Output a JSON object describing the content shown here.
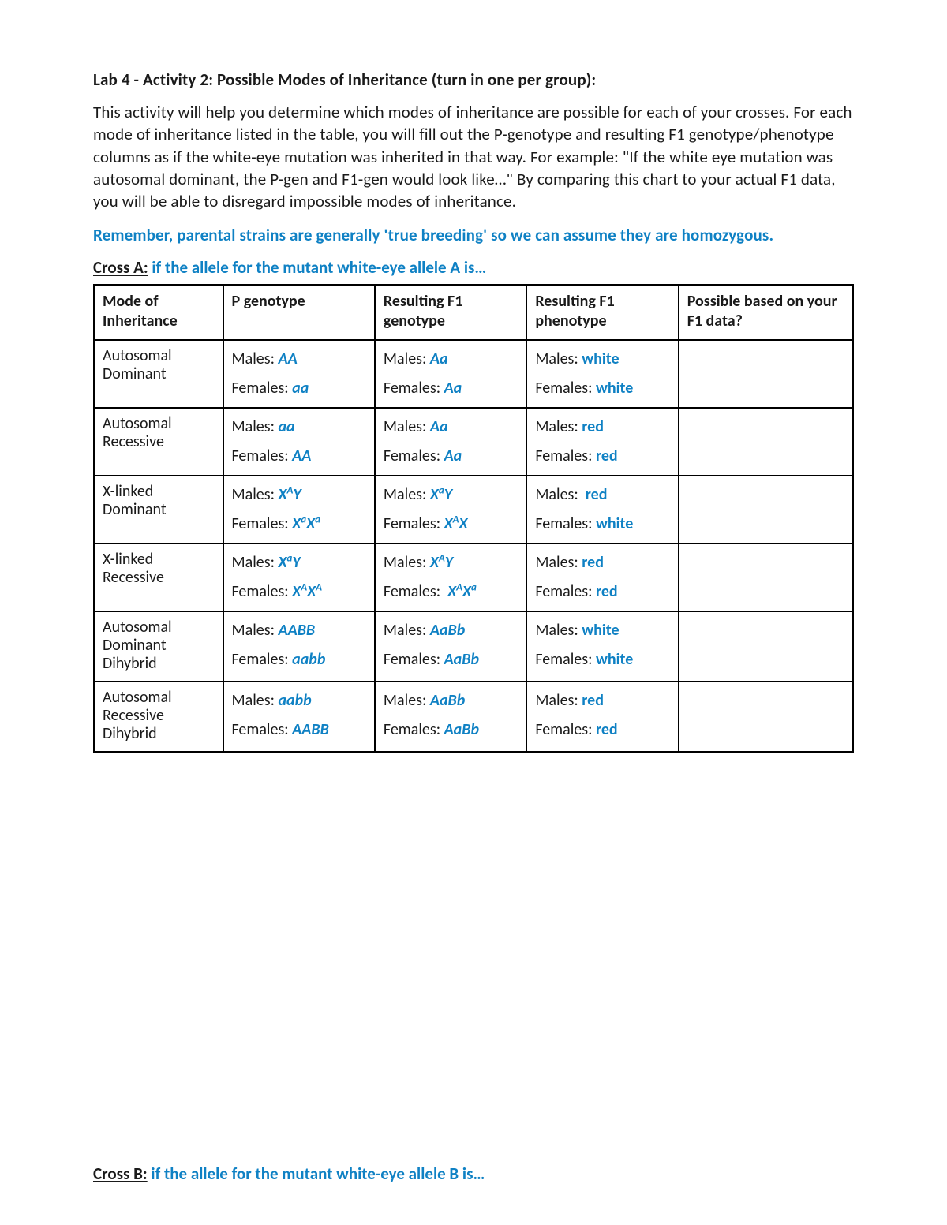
{
  "colors": {
    "text": "#1a1a1a",
    "accent": "#0f81c4",
    "border": "#000000",
    "background": "#ffffff"
  },
  "typography": {
    "family": "Calibri",
    "body_size_pt": 11,
    "title_size_pt": 11,
    "line_height": 1.35
  },
  "heading": "Lab 4 - Activity 2: Possible Modes of Inheritance (turn in one per group):",
  "intro": "This activity will help you determine which modes of inheritance are possible for each of your crosses. For each mode of inheritance listed in the table, you will fill out the P-genotype and resulting F1 genotype/phenotype columns as if the white-eye mutation was inherited in that way. For example: \"If the white eye mutation was autosomal dominant, the P-gen and F1-gen would look like…\" By comparing this chart to your actual F1 data, you will be able to disregard impossible modes of inheritance.",
  "reminder": "Remember, parental strains are generally 'true breeding' so we can assume they are homozygous.",
  "crossA": {
    "label": "Cross A:",
    "text": " if the allele for the mutant white-eye allele A is…"
  },
  "crossB": {
    "label": "Cross B:",
    "text": "  if the allele for the mutant white-eye allele B is…"
  },
  "table": {
    "columns": [
      "Mode of Inheritance",
      "P genotype",
      "Resulting F1 genotype",
      "Resulting F1 phenotype",
      "Possible based on your F1 data?"
    ],
    "column_widths_pct": [
      17,
      20,
      20,
      20,
      23
    ],
    "rows": [
      {
        "mode": "Autosomal Dominant",
        "p": {
          "m": "AA",
          "f": "aa"
        },
        "f1g": {
          "m": "Aa",
          "f": "Aa"
        },
        "f1p": {
          "m": "white",
          "f": "white"
        },
        "possible": ""
      },
      {
        "mode": "Autosomal Recessive",
        "p": {
          "m": "aa",
          "f": "AA"
        },
        "f1g": {
          "m": "Aa",
          "f": "Aa"
        },
        "f1p": {
          "m": "red",
          "f": "red"
        },
        "possible": ""
      },
      {
        "mode": "X-linked Dominant",
        "p": {
          "m": "X^A Y",
          "f": "X^a X^a"
        },
        "f1g": {
          "m": "X^a Y",
          "f": "X^A X"
        },
        "f1p": {
          "m": "red",
          "f": "white"
        },
        "f1p_spaced_male": true,
        "possible": ""
      },
      {
        "mode": "X-linked Recessive",
        "p": {
          "m": "X^a Y",
          "f": "X^A X^A"
        },
        "f1g": {
          "m": "X^A Y",
          "f": "X^A X^a"
        },
        "f1g_f_spaced": true,
        "f1p": {
          "m": "red",
          "f": "red"
        },
        "possible": ""
      },
      {
        "mode": "Autosomal Dominant Dihybrid",
        "p": {
          "m": "AABB",
          "f": "aabb"
        },
        "f1g": {
          "m": "AaBb",
          "f": "AaBb"
        },
        "f1p": {
          "m": "white",
          "f": "white"
        },
        "possible": ""
      },
      {
        "mode": "Autosomal Recessive Dihybrid",
        "p": {
          "m": "aabb",
          "f": "AABB"
        },
        "f1g": {
          "m": "AaBb",
          "f": "AaBb"
        },
        "f1p": {
          "m": "red",
          "f": "red"
        },
        "possible": ""
      }
    ]
  },
  "labels": {
    "males": "Males:",
    "females": "Females:"
  }
}
